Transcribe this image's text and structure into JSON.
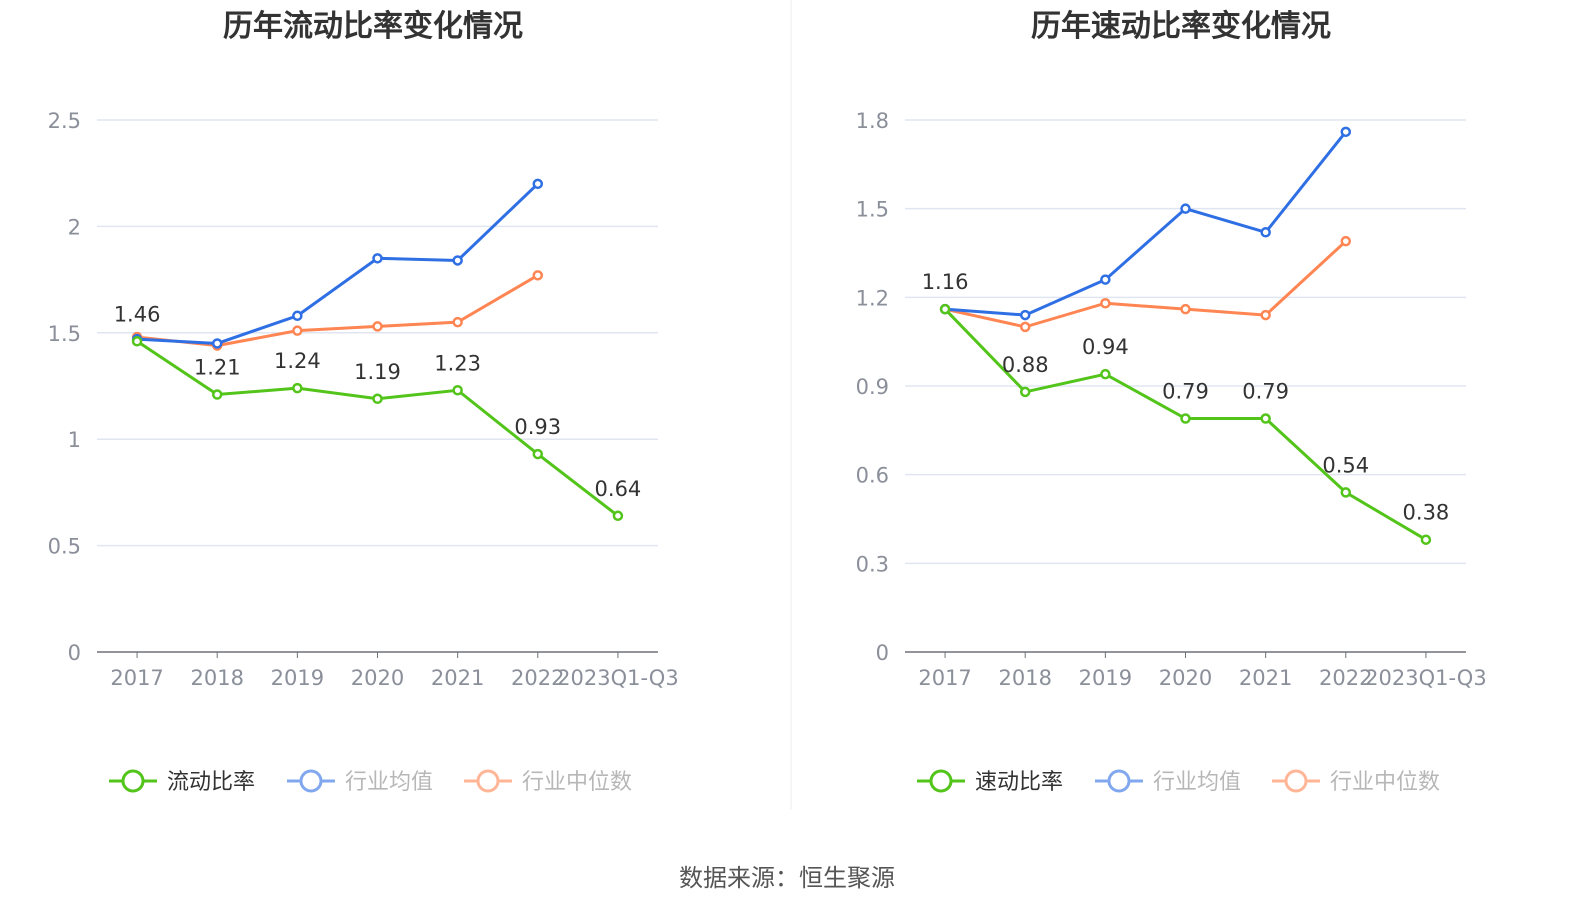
{
  "source": "数据来源：恒生聚源",
  "colors": {
    "main": "#52c41a",
    "avg": "#2f6fe4",
    "median": "#ff8552",
    "grid": "#e0e6f1"
  },
  "chart_data": [
    {
      "type": "line",
      "title": "历年流动比率变化情况",
      "categories": [
        "2017",
        "2018",
        "2019",
        "2020",
        "2021",
        "2022",
        "2023Q1-Q3"
      ],
      "ylim": [
        0,
        2.5
      ],
      "yticks": [
        "0",
        "0.5",
        "1",
        "1.5",
        "2",
        "2.5"
      ],
      "grid": true,
      "legend_position": "bottom",
      "series": [
        {
          "name": "流动比率",
          "values": [
            1.46,
            1.21,
            1.24,
            1.19,
            1.23,
            0.93,
            0.64
          ],
          "labels": [
            "1.46",
            "1.21",
            "1.24",
            "1.19",
            "1.23",
            "0.93",
            "0.64"
          ]
        },
        {
          "name": "行业均值",
          "values": [
            1.47,
            1.45,
            1.58,
            1.85,
            1.84,
            2.2,
            null
          ]
        },
        {
          "name": "行业中位数",
          "values": [
            1.48,
            1.44,
            1.51,
            1.53,
            1.55,
            1.77,
            null
          ]
        }
      ]
    },
    {
      "type": "line",
      "title": "历年速动比率变化情况",
      "categories": [
        "2017",
        "2018",
        "2019",
        "2020",
        "2021",
        "2022",
        "2023Q1-Q3"
      ],
      "ylim": [
        0,
        1.8
      ],
      "yticks": [
        "0",
        "0.3",
        "0.6",
        "0.9",
        "1.2",
        "1.5",
        "1.8"
      ],
      "grid": true,
      "legend_position": "bottom",
      "series": [
        {
          "name": "速动比率",
          "values": [
            1.16,
            0.88,
            0.94,
            0.79,
            0.79,
            0.54,
            0.38
          ],
          "labels": [
            "1.16",
            "0.88",
            "0.94",
            "0.79",
            "0.79",
            "0.54",
            "0.38"
          ]
        },
        {
          "name": "行业均值",
          "values": [
            1.16,
            1.14,
            1.26,
            1.5,
            1.42,
            1.76,
            null
          ]
        },
        {
          "name": "行业中位数",
          "values": [
            1.16,
            1.1,
            1.18,
            1.16,
            1.14,
            1.39,
            null
          ]
        }
      ]
    }
  ]
}
